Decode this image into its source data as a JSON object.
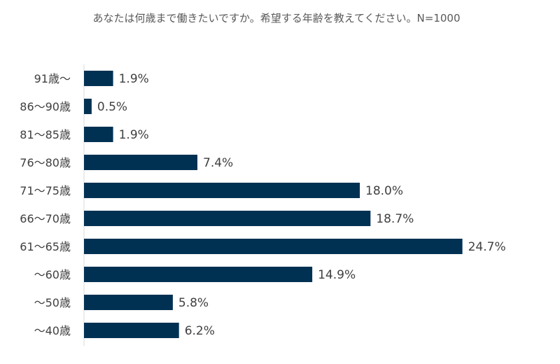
{
  "chart_data": {
    "type": "bar",
    "orientation": "horizontal",
    "title": "あなたは何歳まで働きたいですか。希望する年齢を教えてください。N=1000",
    "categories": [
      "91歳〜",
      "86〜90歳",
      "81〜85歳",
      "76〜80歳",
      "71〜75歳",
      "66〜70歳",
      "61〜65歳",
      "〜60歳",
      "〜50歳",
      "〜40歳"
    ],
    "values": [
      1.9,
      0.5,
      1.9,
      7.4,
      18.0,
      18.7,
      24.7,
      14.9,
      5.8,
      6.2
    ],
    "value_labels": [
      "1.9%",
      "0.5%",
      "1.9%",
      "7.4%",
      "18.0%",
      "18.7%",
      "24.7%",
      "14.9%",
      "5.8%",
      "6.2%"
    ],
    "xlim": [
      0,
      25
    ],
    "grid": false,
    "legend": "none",
    "colors": {
      "bar": "#003153"
    }
  }
}
